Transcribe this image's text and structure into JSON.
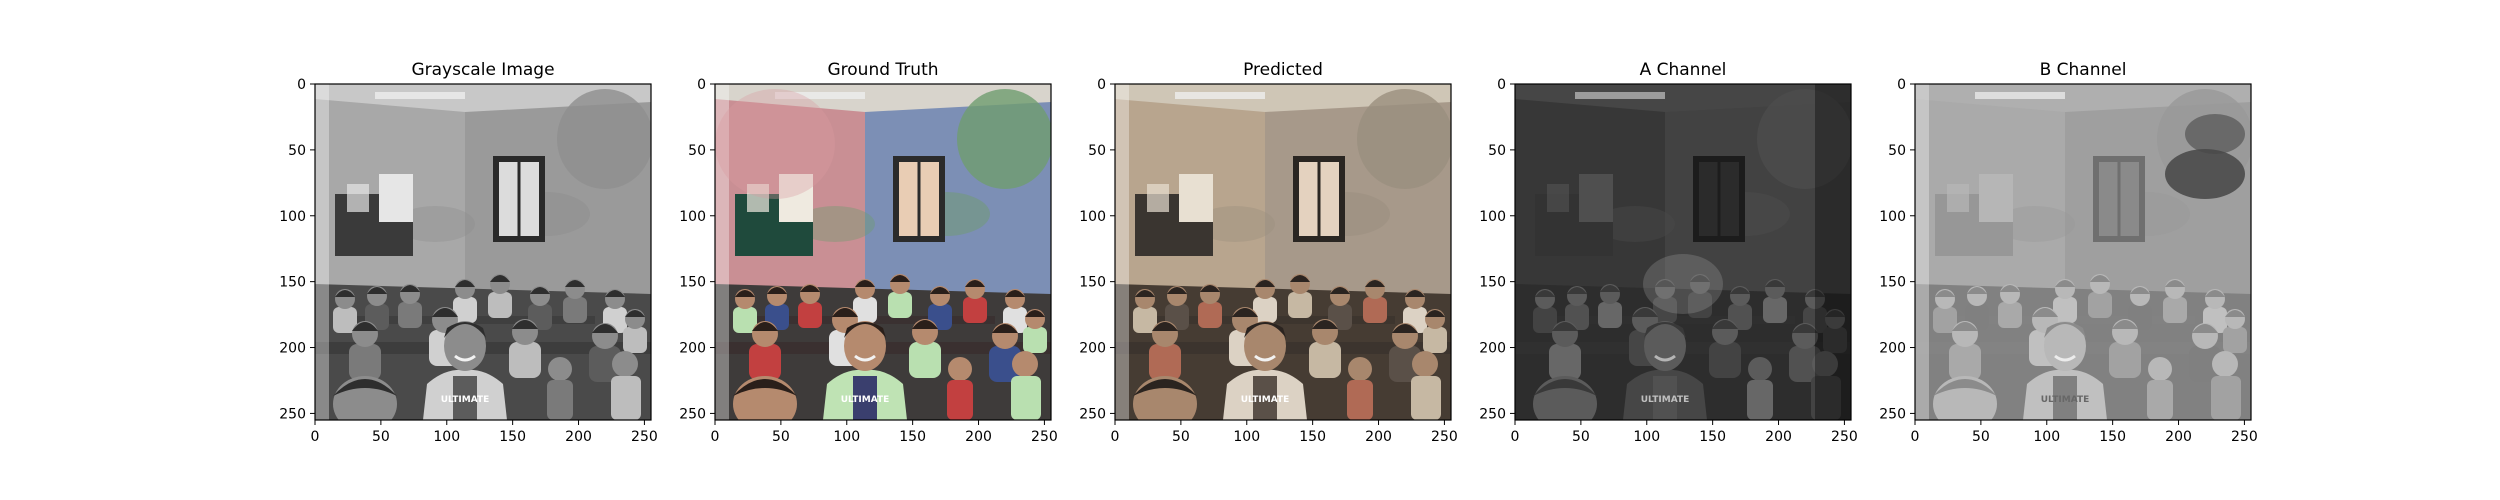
{
  "figure": {
    "panels": [
      {
        "title": "Grayscale Image",
        "mode": "grayscale",
        "x_ticks": [
          "0",
          "50",
          "100",
          "150",
          "200",
          "250"
        ],
        "y_ticks": [
          "0",
          "50",
          "100",
          "150",
          "200",
          "250"
        ]
      },
      {
        "title": "Ground Truth",
        "mode": "truth",
        "x_ticks": [
          "0",
          "50",
          "100",
          "150",
          "200",
          "250"
        ],
        "y_ticks": [
          "0",
          "50",
          "100",
          "150",
          "200",
          "250"
        ]
      },
      {
        "title": "Predicted",
        "mode": "predicted",
        "x_ticks": [
          "0",
          "50",
          "100",
          "150",
          "200",
          "250"
        ],
        "y_ticks": [
          "0",
          "50",
          "100",
          "150",
          "200",
          "250"
        ]
      },
      {
        "title": "A Channel",
        "mode": "a-channel",
        "x_ticks": [
          "0",
          "50",
          "100",
          "150",
          "200",
          "250"
        ],
        "y_ticks": [
          "0",
          "50",
          "100",
          "150",
          "200",
          "250"
        ]
      },
      {
        "title": "B Channel",
        "mode": "b-channel",
        "x_ticks": [
          "0",
          "50",
          "100",
          "150",
          "200",
          "250"
        ],
        "y_ticks": [
          "0",
          "50",
          "100",
          "150",
          "200",
          "250"
        ]
      }
    ],
    "axis_range": {
      "x": [
        0,
        255
      ],
      "y": [
        0,
        255
      ]
    },
    "colors": {
      "axis": "#000000",
      "background": "#ffffff"
    },
    "image_text": "ULTIMATE"
  }
}
